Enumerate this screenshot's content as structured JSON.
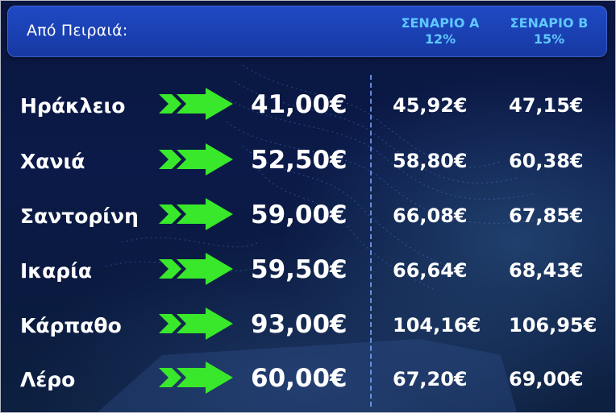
{
  "header": {
    "title": "Από Πειραιά:",
    "scenario_a": {
      "label": "ΣΕΝΑΡΙΟ Α",
      "percent": "12%"
    },
    "scenario_b": {
      "label": "ΣΕΝΑΡΙΟ Β",
      "percent": "15%"
    }
  },
  "colors": {
    "background": "#0b1a48",
    "header": "#1f4ac6",
    "scenario_heading": "#5ec8ff",
    "arrow": "#39e82a",
    "text": "#ffffff"
  },
  "rows": [
    {
      "city": "Ηράκλειο",
      "price": "41,00€",
      "scenario_a": "45,92€",
      "scenario_b": "47,15€"
    },
    {
      "city": "Χανιά",
      "price": "52,50€",
      "scenario_a": "58,80€",
      "scenario_b": "60,38€"
    },
    {
      "city": "Σαντορίνη",
      "price": "59,00€",
      "scenario_a": "66,08€",
      "scenario_b": "67,85€"
    },
    {
      "city": "Ικαρία",
      "price": "59,50€",
      "scenario_a": "66,64€",
      "scenario_b": "68,43€"
    },
    {
      "city": "Κάρπαθο",
      "price": "93,00€",
      "scenario_a": "104,16€",
      "scenario_b": "106,95€"
    },
    {
      "city": "Λέρο",
      "price": "60,00€",
      "scenario_a": "67,20€",
      "scenario_b": "69,00€"
    }
  ]
}
